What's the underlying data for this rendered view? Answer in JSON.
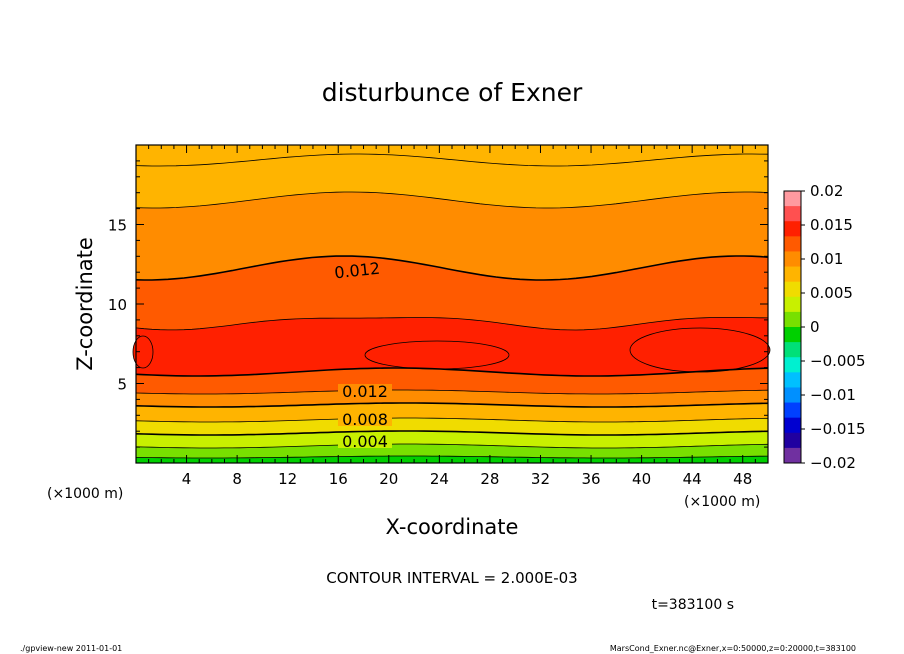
{
  "chart_data": {
    "type": "contour",
    "title": "disturbunce of Exner",
    "xlabel": "X-coordinate",
    "ylabel": "Z-coordinate",
    "x_unit_left": "(×1000 m)",
    "x_unit_right": "(×1000 m)",
    "xlim": [
      0,
      50
    ],
    "ylim": [
      0,
      20
    ],
    "x_ticks": [
      4,
      8,
      12,
      16,
      20,
      24,
      28,
      32,
      36,
      40,
      44,
      48
    ],
    "y_ticks": [
      5,
      10,
      15
    ],
    "colorbar": {
      "levels": [
        0.02,
        0.015,
        0.01,
        0.005,
        0,
        -0.005,
        -0.01,
        -0.015,
        -0.02
      ],
      "labels": [
        "0.02",
        "0.015",
        "0.01",
        "0.005",
        "0",
        "−0.005",
        "−0.01",
        "−0.015",
        "−0.02"
      ],
      "colors": [
        "#ff9aa0",
        "#ff5050",
        "#ff2000",
        "#ff5a00",
        "#ff8c00",
        "#ffb400",
        "#f0dc00",
        "#c8f000",
        "#78e000",
        "#00d000",
        "#00e078",
        "#00f0d0",
        "#00c0ff",
        "#0090ff",
        "#0040ff",
        "#0000d0",
        "#2000a0",
        "#7030a0"
      ]
    },
    "contour_labels": [
      "0.012",
      "0.012",
      "0.008",
      "0.004"
    ],
    "contour_interval_text": "CONTOUR INTERVAL = 2.000E-03",
    "time_text": "t=383100 s"
  },
  "footer": {
    "left": "./gpview-new   2011-01-01",
    "right": "MarsCond_Exner.nc@Exner,x=0:50000,z=0:20000,t=383100"
  }
}
